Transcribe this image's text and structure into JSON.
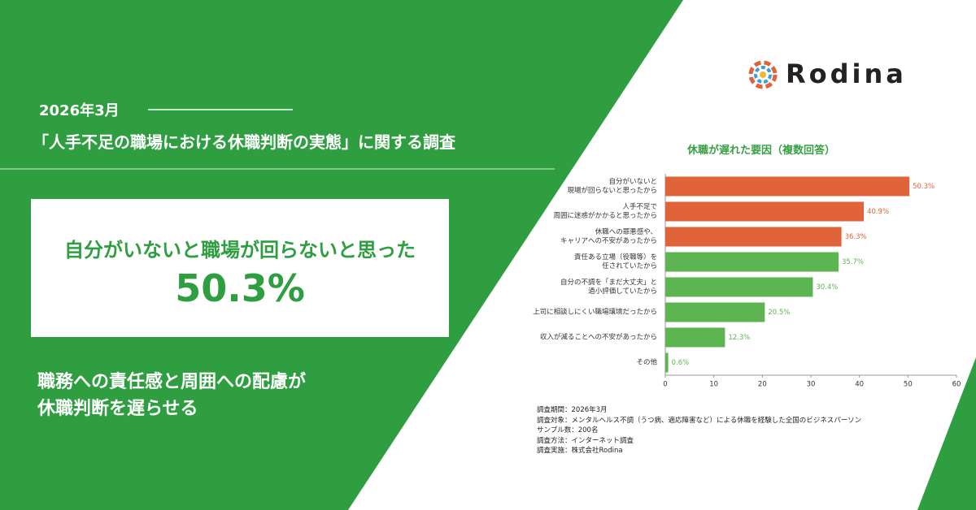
{
  "header": {
    "date": "2026年3月",
    "title": "「人手不足の職場における休職判断の実態」に関する調査"
  },
  "highlight": {
    "text": "自分がいないと職場が回らないと思った",
    "value": "50.3%"
  },
  "tagline": [
    "職務への責任感と周囲への配慮が",
    "休職判断を遅らせる"
  ],
  "logo": "Rodina",
  "chart_data": {
    "type": "barh",
    "title": "休職が遅れた要因（複数回答）",
    "categories": [
      "自分がいないと\n現場が回らないと思ったから",
      "人手不足で\n周囲に迷惑がかかると思ったから",
      "休職への罪悪感や、\nキャリアへの不安があったから",
      "責任ある立場（役職等）を\n任されていたから",
      "自分の不調を「まだ大丈夫」と\n過小評価していたから",
      "上司に相談しにくい職場環境だったから",
      "収入が減ることへの不安があったから",
      "その他"
    ],
    "values": [
      50.3,
      40.9,
      36.3,
      35.7,
      30.4,
      20.5,
      12.3,
      0.6
    ],
    "value_labels": [
      "50.3%",
      "40.9%",
      "36.3%",
      "35.7%",
      "30.4%",
      "20.5%",
      "12.3%",
      "0.6%"
    ],
    "colors": [
      "#e0633a",
      "#e0633a",
      "#e0633a",
      "#5cb551",
      "#5cb551",
      "#5cb551",
      "#5cb551",
      "#5cb551"
    ],
    "xlim": [
      0,
      60
    ],
    "xticks": [
      0,
      10,
      20,
      30,
      40,
      50,
      60
    ]
  },
  "survey": [
    "調査期間：2026年3月",
    "調査対象：メンタルヘルス不調（うつ病、適応障害など）による休職を経験した全国のビジネスパーソン",
    "サンプル数：200名",
    "調査方法：インターネット調査",
    "調査実施：株式会社Rodina"
  ]
}
